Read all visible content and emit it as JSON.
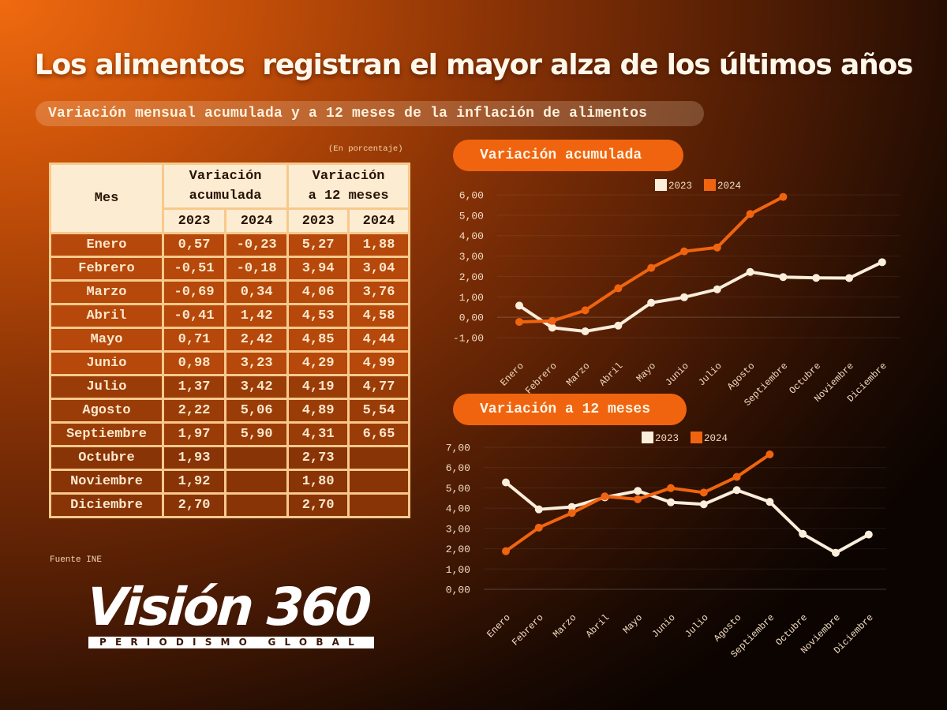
{
  "header": {
    "title": "Los alimentos  registran el mayor alza de los últimos años",
    "subtitle": "Variación mensual acumulada y a 12 meses de la inflación de alimentos"
  },
  "table": {
    "unit_note": "(En porcentaje)",
    "headers": {
      "month": "Mes",
      "group1": [
        "Variación",
        "acumulada"
      ],
      "group2": [
        "Variación",
        "a 12 meses"
      ],
      "years": [
        "2023",
        "2024",
        "2023",
        "2024"
      ]
    },
    "rows": [
      {
        "mes": "Enero",
        "acum_2023": "0,57",
        "acum_2024": "-0,23",
        "m12_2023": "5,27",
        "m12_2024": "1,88"
      },
      {
        "mes": "Febrero",
        "acum_2023": "-0,51",
        "acum_2024": "-0,18",
        "m12_2023": "3,94",
        "m12_2024": "3,04"
      },
      {
        "mes": "Marzo",
        "acum_2023": "-0,69",
        "acum_2024": "0,34",
        "m12_2023": "4,06",
        "m12_2024": "3,76"
      },
      {
        "mes": "Abril",
        "acum_2023": "-0,41",
        "acum_2024": "1,42",
        "m12_2023": "4,53",
        "m12_2024": "4,58"
      },
      {
        "mes": "Mayo",
        "acum_2023": "0,71",
        "acum_2024": "2,42",
        "m12_2023": "4,85",
        "m12_2024": "4,44"
      },
      {
        "mes": "Junio",
        "acum_2023": "0,98",
        "acum_2024": "3,23",
        "m12_2023": "4,29",
        "m12_2024": "4,99"
      },
      {
        "mes": "Julio",
        "acum_2023": "1,37",
        "acum_2024": "3,42",
        "m12_2023": "4,19",
        "m12_2024": "4,77"
      },
      {
        "mes": "Agosto",
        "acum_2023": "2,22",
        "acum_2024": "5,06",
        "m12_2023": "4,89",
        "m12_2024": "5,54"
      },
      {
        "mes": "Septiembre",
        "acum_2023": "1,97",
        "acum_2024": "5,90",
        "m12_2023": "4,31",
        "m12_2024": "6,65"
      },
      {
        "mes": "Octubre",
        "acum_2023": "1,93",
        "acum_2024": "",
        "m12_2023": "2,73",
        "m12_2024": ""
      },
      {
        "mes": "Noviembre",
        "acum_2023": "1,92",
        "acum_2024": "",
        "m12_2023": "1,80",
        "m12_2024": ""
      },
      {
        "mes": "Diciembre",
        "acum_2023": "2,70",
        "acum_2024": "",
        "m12_2023": "2,70",
        "m12_2024": ""
      }
    ],
    "source": "Fuente INE"
  },
  "logo": {
    "name": "Visión 360",
    "tagline": "PERIODISMO GLOBAL"
  },
  "colors": {
    "series_2023": "#fbeedb",
    "series_2024": "#f0640f",
    "grid": "#ffffff",
    "axis_text": "#f3dcc0"
  },
  "chart_data": [
    {
      "type": "line",
      "title": "Variación acumulada",
      "xlabel": "",
      "ylabel": "",
      "categories": [
        "Enero",
        "Febrero",
        "Marzo",
        "Abril",
        "Mayo",
        "Junio",
        "Julio",
        "Agosto",
        "Septiembre",
        "Octubre",
        "Noviembre",
        "Diciembre"
      ],
      "series": [
        {
          "name": "2023",
          "values": [
            0.57,
            -0.51,
            -0.69,
            -0.41,
            0.71,
            0.98,
            1.37,
            2.22,
            1.97,
            1.93,
            1.92,
            2.7
          ]
        },
        {
          "name": "2024",
          "values": [
            -0.23,
            -0.18,
            0.34,
            1.42,
            2.42,
            3.23,
            3.42,
            5.06,
            5.9,
            null,
            null,
            null
          ]
        }
      ],
      "ylim": [
        -1,
        6
      ],
      "yticks": [
        "-1,00",
        "0,00",
        "1,00",
        "2,00",
        "3,00",
        "4,00",
        "5,00",
        "6,00"
      ],
      "grid": true,
      "legend": "top-center"
    },
    {
      "type": "line",
      "title": "Variación a 12 meses",
      "xlabel": "",
      "ylabel": "",
      "categories": [
        "Enero",
        "Febrero",
        "Marzo",
        "Abril",
        "Mayo",
        "Junio",
        "Julio",
        "Agosto",
        "Septiembre",
        "Octubre",
        "Noviembre",
        "Diciembre"
      ],
      "series": [
        {
          "name": "2023",
          "values": [
            5.27,
            3.94,
            4.06,
            4.53,
            4.85,
            4.29,
            4.19,
            4.89,
            4.31,
            2.73,
            1.8,
            2.7
          ]
        },
        {
          "name": "2024",
          "values": [
            1.88,
            3.04,
            3.76,
            4.58,
            4.44,
            4.99,
            4.77,
            5.54,
            6.65,
            null,
            null,
            null
          ]
        }
      ],
      "ylim": [
        0,
        7
      ],
      "yticks": [
        "0,00",
        "1,00",
        "2,00",
        "3,00",
        "4,00",
        "5,00",
        "6,00",
        "7,00"
      ],
      "grid": true,
      "legend": "top-center"
    }
  ]
}
